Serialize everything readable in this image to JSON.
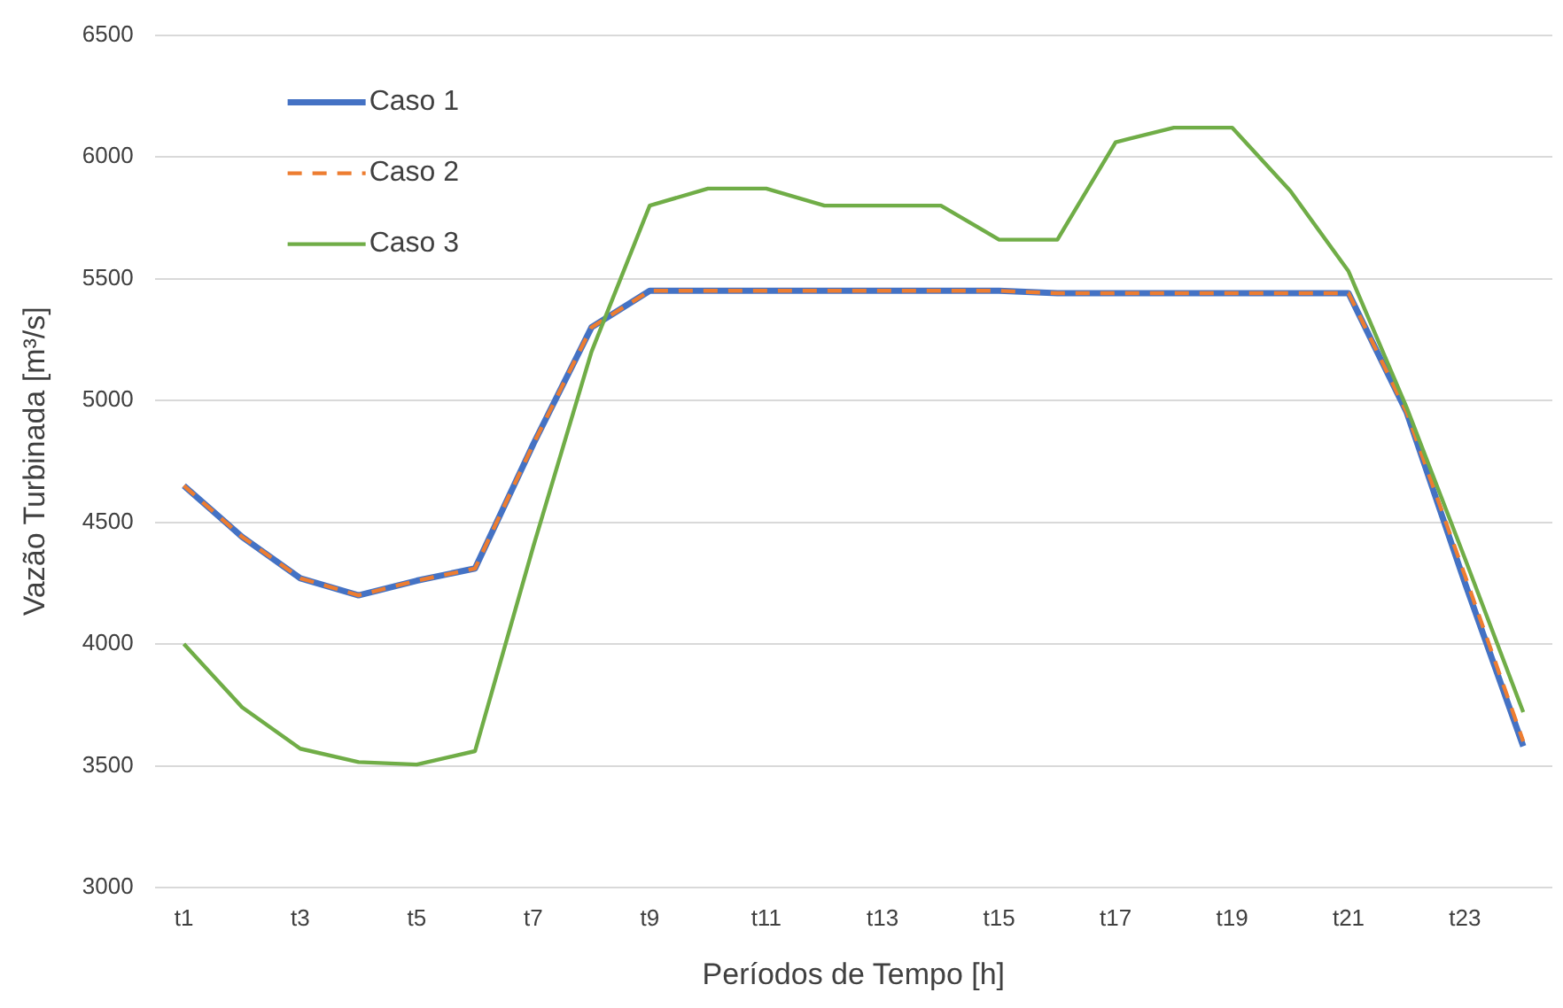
{
  "chart_data": {
    "type": "line",
    "xlabel": "Períodos de Tempo [h]",
    "ylabel": "Vazão Turbinada [m³/s]",
    "categories": [
      "t1",
      null,
      "t3",
      null,
      "t5",
      null,
      "t7",
      null,
      "t9",
      null,
      "t11",
      null,
      "t13",
      null,
      "t15",
      null,
      "t17",
      null,
      "t19",
      null,
      "t21",
      null,
      "t23",
      null
    ],
    "series": [
      {
        "name": "Caso 1",
        "color": "#4472c4",
        "line_style": "solid",
        "values": [
          4650,
          4440,
          4270,
          4200,
          4260,
          4310,
          4820,
          5300,
          5450,
          5450,
          5450,
          5450,
          5450,
          5450,
          5450,
          5440,
          5440,
          5440,
          5440,
          5440,
          5440,
          4950,
          4250,
          3580
        ]
      },
      {
        "name": "Caso 2",
        "color": "#ed7d31",
        "line_style": "dashed",
        "values": [
          4650,
          4440,
          4270,
          4200,
          4260,
          4310,
          4820,
          5300,
          5450,
          5450,
          5450,
          5450,
          5450,
          5450,
          5450,
          5440,
          5440,
          5440,
          5440,
          5440,
          5440,
          4950,
          4280,
          3600
        ]
      },
      {
        "name": "Caso 3",
        "color": "#70ad47",
        "line_style": "solid",
        "values": [
          4000,
          3740,
          3570,
          3515,
          3505,
          3560,
          4400,
          5200,
          5800,
          5870,
          5870,
          5800,
          5800,
          5800,
          5660,
          5660,
          6060,
          6120,
          6120,
          5860,
          5530,
          4970,
          4350,
          3720
        ]
      }
    ],
    "ylim": [
      3000,
      6500
    ],
    "yticks": [
      3000,
      3500,
      4000,
      4500,
      5000,
      5500,
      6000,
      6500
    ],
    "grid": "y",
    "legend": "top left",
    "marker": "none"
  }
}
